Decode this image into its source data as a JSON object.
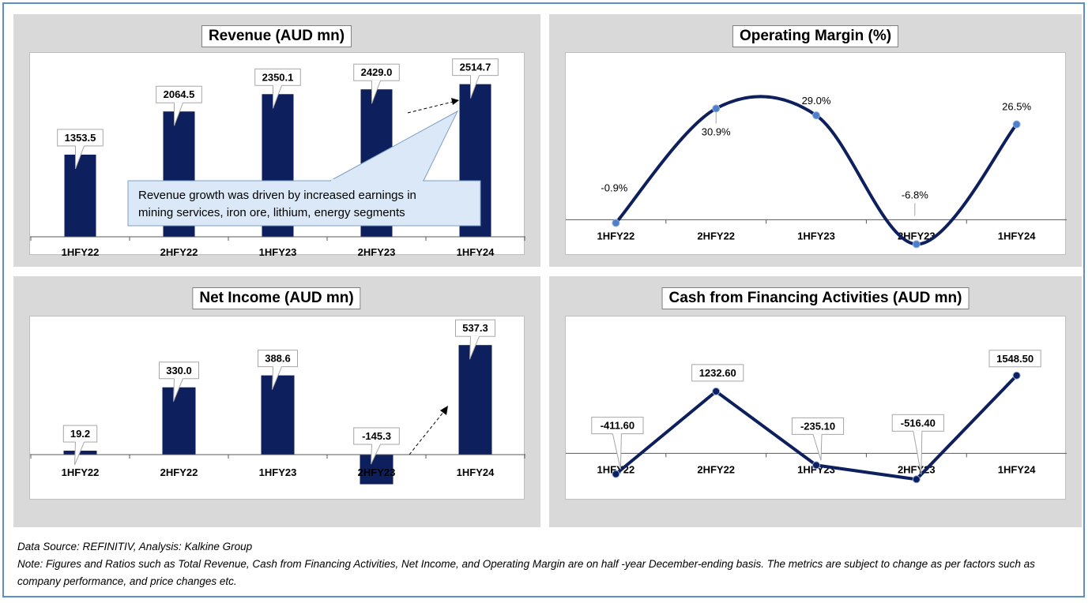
{
  "chart_data": [
    {
      "type": "bar",
      "title": "Revenue (AUD mn)",
      "categories": [
        "1HFY22",
        "2HFY22",
        "1HFY23",
        "2HFY23",
        "1HFY24"
      ],
      "values": [
        1353.5,
        2064.5,
        2350.1,
        2429.0,
        2514.7
      ],
      "value_labels": [
        "1353.5",
        "2064.5",
        "2350.1",
        "2429.0",
        "2514.7"
      ],
      "ylim": [
        0,
        2900
      ],
      "annotation": "Revenue growth was driven by increased earnings in mining services, iron ore, lithium, energy segments",
      "color": "#0d1f5c"
    },
    {
      "type": "line",
      "title": "Operating Margin (%)",
      "categories": [
        "1HFY22",
        "2HFY22",
        "1HFY23",
        "2HFY23",
        "1HFY24"
      ],
      "values": [
        -0.9,
        30.9,
        29.0,
        -6.8,
        26.5
      ],
      "value_labels": [
        "-0.9%",
        "30.9%",
        "29.0%",
        "-6.8%",
        "26.5%"
      ],
      "ylim": [
        -10,
        40
      ],
      "smooth": true,
      "color": "#0d1f5c",
      "marker_color": "#4f7fc9"
    },
    {
      "type": "bar",
      "title": "Net Income (AUD mn)",
      "categories": [
        "1HFY22",
        "2HFY22",
        "1HFY23",
        "2HFY23",
        "1HFY24"
      ],
      "values": [
        19.2,
        330.0,
        388.6,
        -145.3,
        537.3
      ],
      "value_labels": [
        "19.2",
        "330.0",
        "388.6",
        "-145.3",
        "537.3"
      ],
      "ylim": [
        -200,
        600
      ],
      "color": "#0d1f5c"
    },
    {
      "type": "line",
      "title": "Cash from Financing Activities (AUD mn)",
      "categories": [
        "1HFY22",
        "2HFY22",
        "1HFY23",
        "2HFY23",
        "1HFY24"
      ],
      "values": [
        -411.6,
        1232.6,
        -235.1,
        -516.4,
        1548.5
      ],
      "value_labels": [
        "-411.60",
        "1232.60",
        "-235.10",
        "-516.40",
        "1548.50"
      ],
      "ylim": [
        -700,
        2000
      ],
      "smooth": false,
      "color": "#0d1f5c",
      "marker_color": "#0d1f5c"
    }
  ],
  "footer": {
    "source": "Data Source: REFINITIV, Analysis: Kalkine Group",
    "note": "Note: Figures and Ratios such as Total Revenue, Cash from Financing Activities, Net Income, and Operating Margin are on half -year December-ending basis. The metrics are subject to change as per factors such as company performance, and price changes etc."
  }
}
